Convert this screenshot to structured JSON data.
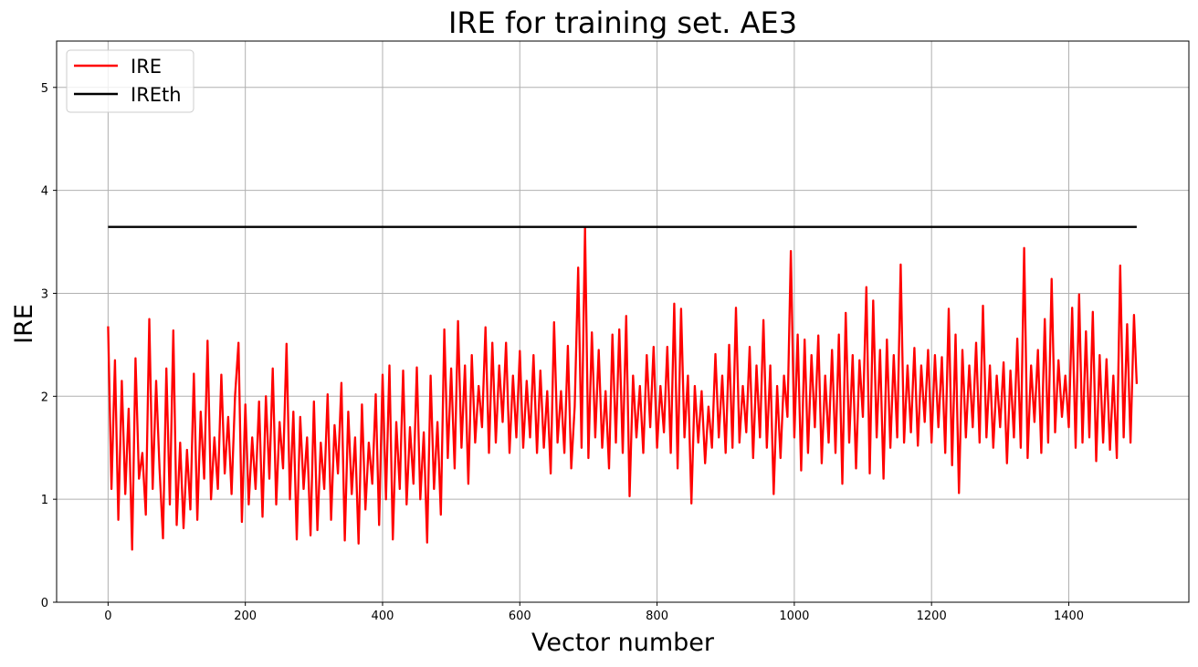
{
  "chart_data": {
    "type": "line",
    "title": "IRE for training set. AE3",
    "xlabel": "Vector number",
    "ylabel": "IRE",
    "xlim": [
      -75,
      1575
    ],
    "ylim": [
      0,
      5.45
    ],
    "xticks": [
      0,
      200,
      400,
      600,
      800,
      1000,
      1200,
      1400
    ],
    "yticks": [
      0,
      1,
      2,
      3,
      4,
      5
    ],
    "grid": true,
    "legend": "upper-left",
    "series": [
      {
        "name": "IRE",
        "color": "#ff0000",
        "x": [
          0,
          5,
          10,
          15,
          20,
          25,
          30,
          35,
          40,
          45,
          50,
          55,
          60,
          65,
          70,
          75,
          80,
          85,
          90,
          95,
          100,
          105,
          110,
          115,
          120,
          125,
          130,
          135,
          140,
          145,
          150,
          155,
          160,
          165,
          170,
          175,
          180,
          185,
          190,
          195,
          200,
          205,
          210,
          215,
          220,
          225,
          230,
          235,
          240,
          245,
          250,
          255,
          260,
          265,
          270,
          275,
          280,
          285,
          290,
          295,
          300,
          305,
          310,
          315,
          320,
          325,
          330,
          335,
          340,
          345,
          350,
          355,
          360,
          365,
          370,
          375,
          380,
          385,
          390,
          395,
          400,
          405,
          410,
          415,
          420,
          425,
          430,
          435,
          440,
          445,
          450,
          455,
          460,
          465,
          470,
          475,
          480,
          485,
          490,
          495,
          500,
          505,
          510,
          515,
          520,
          525,
          530,
          535,
          540,
          545,
          550,
          555,
          560,
          565,
          570,
          575,
          580,
          585,
          590,
          595,
          600,
          605,
          610,
          615,
          620,
          625,
          630,
          635,
          640,
          645,
          650,
          655,
          660,
          665,
          670,
          675,
          680,
          685,
          690,
          695,
          700,
          705,
          710,
          715,
          720,
          725,
          730,
          735,
          740,
          745,
          750,
          755,
          760,
          765,
          770,
          775,
          780,
          785,
          790,
          795,
          800,
          805,
          810,
          815,
          820,
          825,
          830,
          835,
          840,
          845,
          850,
          855,
          860,
          865,
          870,
          875,
          880,
          885,
          890,
          895,
          900,
          905,
          910,
          915,
          920,
          925,
          930,
          935,
          940,
          945,
          950,
          955,
          960,
          965,
          970,
          975,
          980,
          985,
          990,
          995,
          1000,
          1005,
          1010,
          1015,
          1020,
          1025,
          1030,
          1035,
          1040,
          1045,
          1050,
          1055,
          1060,
          1065,
          1070,
          1075,
          1080,
          1085,
          1090,
          1095,
          1100,
          1105,
          1110,
          1115,
          1120,
          1125,
          1130,
          1135,
          1140,
          1145,
          1150,
          1155,
          1160,
          1165,
          1170,
          1175,
          1180,
          1185,
          1190,
          1195,
          1200,
          1205,
          1210,
          1215,
          1220,
          1225,
          1230,
          1235,
          1240,
          1245,
          1250,
          1255,
          1260,
          1265,
          1270,
          1275,
          1280,
          1285,
          1290,
          1295,
          1300,
          1305,
          1310,
          1315,
          1320,
          1325,
          1330,
          1335,
          1340,
          1345,
          1350,
          1355,
          1360,
          1365,
          1370,
          1375,
          1380,
          1385,
          1390,
          1395,
          1400,
          1405,
          1410,
          1415,
          1420,
          1425,
          1430,
          1435,
          1440,
          1445,
          1450,
          1455,
          1460,
          1465,
          1470,
          1475,
          1480,
          1485,
          1490,
          1495,
          1499
        ],
        "values": [
          2.68,
          1.1,
          2.35,
          0.8,
          2.15,
          1.05,
          1.88,
          0.51,
          2.37,
          1.2,
          1.45,
          0.85,
          2.75,
          1.1,
          2.15,
          1.3,
          0.62,
          2.27,
          0.95,
          2.64,
          0.75,
          1.55,
          0.72,
          1.48,
          0.9,
          2.22,
          0.8,
          1.85,
          1.2,
          2.54,
          1.0,
          1.6,
          1.1,
          2.21,
          1.25,
          1.8,
          1.05,
          2.0,
          2.52,
          0.78,
          1.92,
          0.95,
          1.6,
          1.1,
          1.95,
          0.83,
          2.0,
          1.2,
          2.27,
          0.95,
          1.75,
          1.3,
          2.51,
          1.0,
          1.85,
          0.61,
          1.8,
          1.1,
          1.6,
          0.65,
          1.95,
          0.7,
          1.55,
          1.1,
          2.02,
          0.8,
          1.72,
          1.25,
          2.13,
          0.6,
          1.85,
          1.05,
          1.6,
          0.57,
          1.92,
          0.9,
          1.55,
          1.15,
          2.02,
          0.75,
          2.21,
          1.0,
          2.3,
          0.61,
          1.75,
          1.1,
          2.25,
          0.95,
          1.7,
          1.15,
          2.28,
          1.0,
          1.65,
          0.58,
          2.2,
          1.1,
          1.75,
          0.85,
          2.65,
          1.4,
          2.27,
          1.3,
          2.73,
          1.5,
          2.3,
          1.15,
          2.4,
          1.55,
          2.1,
          1.7,
          2.67,
          1.45,
          2.52,
          1.55,
          2.3,
          1.75,
          2.52,
          1.45,
          2.2,
          1.6,
          2.44,
          1.5,
          2.15,
          1.6,
          2.4,
          1.45,
          2.25,
          1.5,
          2.05,
          1.25,
          2.72,
          1.55,
          2.05,
          1.45,
          2.49,
          1.3,
          1.9,
          3.25,
          1.5,
          3.64,
          1.4,
          2.62,
          1.6,
          2.45,
          1.5,
          2.05,
          1.3,
          2.6,
          1.55,
          2.65,
          1.45,
          2.78,
          1.03,
          2.2,
          1.6,
          2.1,
          1.45,
          2.4,
          1.7,
          2.48,
          1.5,
          2.1,
          1.65,
          2.48,
          1.45,
          2.9,
          1.3,
          2.85,
          1.6,
          2.2,
          0.96,
          2.1,
          1.55,
          2.05,
          1.35,
          1.9,
          1.5,
          2.41,
          1.6,
          2.2,
          1.45,
          2.5,
          1.5,
          2.86,
          1.55,
          2.1,
          1.65,
          2.48,
          1.4,
          2.3,
          1.6,
          2.74,
          1.5,
          2.3,
          1.05,
          2.1,
          1.4,
          2.2,
          1.8,
          3.41,
          1.6,
          2.6,
          1.28,
          2.55,
          1.45,
          2.4,
          1.7,
          2.59,
          1.35,
          2.2,
          1.55,
          2.45,
          1.45,
          2.6,
          1.15,
          2.81,
          1.55,
          2.4,
          1.3,
          2.35,
          1.8,
          3.06,
          1.25,
          2.93,
          1.6,
          2.45,
          1.2,
          2.55,
          1.5,
          2.4,
          1.6,
          3.28,
          1.55,
          2.3,
          1.65,
          2.47,
          1.52,
          2.3,
          1.75,
          2.45,
          1.55,
          2.4,
          1.7,
          2.38,
          1.45,
          2.85,
          1.33,
          2.6,
          1.06,
          2.45,
          1.6,
          2.3,
          1.7,
          2.52,
          1.55,
          2.88,
          1.6,
          2.3,
          1.5,
          2.2,
          1.7,
          2.33,
          1.35,
          2.25,
          1.6,
          2.56,
          1.5,
          3.44,
          1.4,
          2.3,
          1.75,
          2.45,
          1.45,
          2.75,
          1.55,
          3.14,
          1.65,
          2.35,
          1.8,
          2.2,
          1.7,
          2.86,
          1.5,
          2.99,
          1.55,
          2.63,
          1.6,
          2.82,
          1.37,
          2.4,
          1.55,
          2.36,
          1.48,
          2.2,
          1.4,
          3.27,
          1.6,
          2.7,
          1.55,
          2.79,
          2.12
        ]
      },
      {
        "name": "IREth",
        "color": "#000000",
        "x": [
          0,
          1499
        ],
        "values": [
          3.645,
          3.645
        ]
      }
    ]
  }
}
